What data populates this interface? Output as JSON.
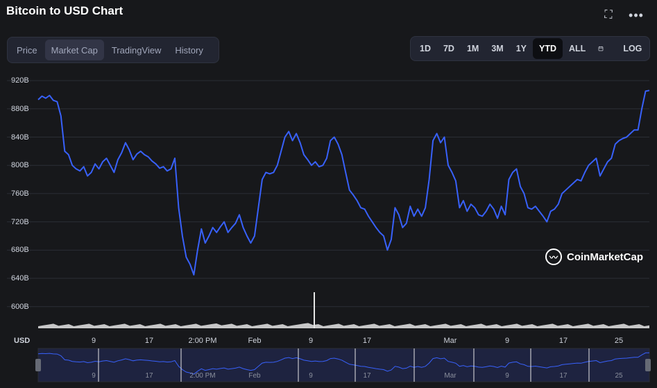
{
  "header": {
    "title": "Bitcoin to USD Chart",
    "fullscreen_icon": "fullscreen-icon",
    "more_icon": "more-dots-icon"
  },
  "tabs": [
    {
      "label": "Price",
      "active": false
    },
    {
      "label": "Market Cap",
      "active": true
    },
    {
      "label": "TradingView",
      "active": false
    },
    {
      "label": "History",
      "active": false
    }
  ],
  "ranges": [
    {
      "label": "1D",
      "active": false
    },
    {
      "label": "7D",
      "active": false
    },
    {
      "label": "1M",
      "active": false
    },
    {
      "label": "3M",
      "active": false
    },
    {
      "label": "1Y",
      "active": false
    },
    {
      "label": "YTD",
      "active": true
    },
    {
      "label": "ALL",
      "active": false
    },
    {
      "label": "LOG",
      "active": false
    }
  ],
  "calendar_icon": "calendar-icon",
  "currency_label": "USD",
  "watermark": "CoinMarketCap",
  "colors": {
    "line": "#3861fb",
    "volume": "#e6e6e6",
    "background": "#17181b"
  },
  "chart_data": {
    "type": "line",
    "title": "Bitcoin to USD Chart",
    "metric": "Market Cap",
    "y_unit": "B",
    "ylim": [
      585,
      925
    ],
    "y_ticks": [
      "920B",
      "880B",
      "840B",
      "800B",
      "760B",
      "720B",
      "680B",
      "640B",
      "600B"
    ],
    "x_tick_labels": [
      "9",
      "17",
      "2:00 PM",
      "Feb",
      "9",
      "17",
      "Mar",
      "9",
      "17",
      "25"
    ],
    "grid": true,
    "series": [
      {
        "values": [
          893,
          898,
          895,
          899,
          892,
          890,
          870,
          820,
          815,
          800,
          795,
          792,
          798,
          785,
          790,
          802,
          795,
          805,
          810,
          800,
          790,
          808,
          818,
          832,
          822,
          808,
          816,
          820,
          815,
          812,
          806,
          802,
          796,
          798,
          792,
          795,
          810,
          740,
          700,
          670,
          660,
          645,
          680,
          710,
          690,
          700,
          712,
          705,
          713,
          720,
          705,
          712,
          718,
          730,
          712,
          700,
          690,
          700,
          740,
          780,
          790,
          788,
          790,
          800,
          820,
          840,
          848,
          835,
          845,
          832,
          815,
          808,
          800,
          805,
          798,
          800,
          810,
          835,
          840,
          830,
          815,
          790,
          765,
          758,
          750,
          740,
          738,
          728,
          720,
          712,
          705,
          700,
          680,
          695,
          740,
          730,
          712,
          718,
          742,
          728,
          738,
          728,
          740,
          780,
          835,
          845,
          832,
          840,
          800,
          790,
          778,
          740,
          750,
          735,
          745,
          740,
          730,
          728,
          735,
          745,
          738,
          725,
          742,
          730,
          780,
          790,
          795,
          770,
          760,
          740,
          738,
          742,
          735,
          728,
          720,
          735,
          738,
          745,
          760,
          765,
          770,
          775,
          780,
          778,
          790,
          800,
          805,
          810,
          785,
          795,
          805,
          810,
          830,
          835,
          838,
          840,
          845,
          850,
          850,
          880,
          905,
          906
        ]
      }
    ],
    "volume_spike_label": "Feb 9"
  },
  "navigator": {
    "labels": [
      "9",
      "17",
      "2:00 PM",
      "Feb",
      "9",
      "17",
      "Mar",
      "9",
      "17",
      "25"
    ]
  }
}
